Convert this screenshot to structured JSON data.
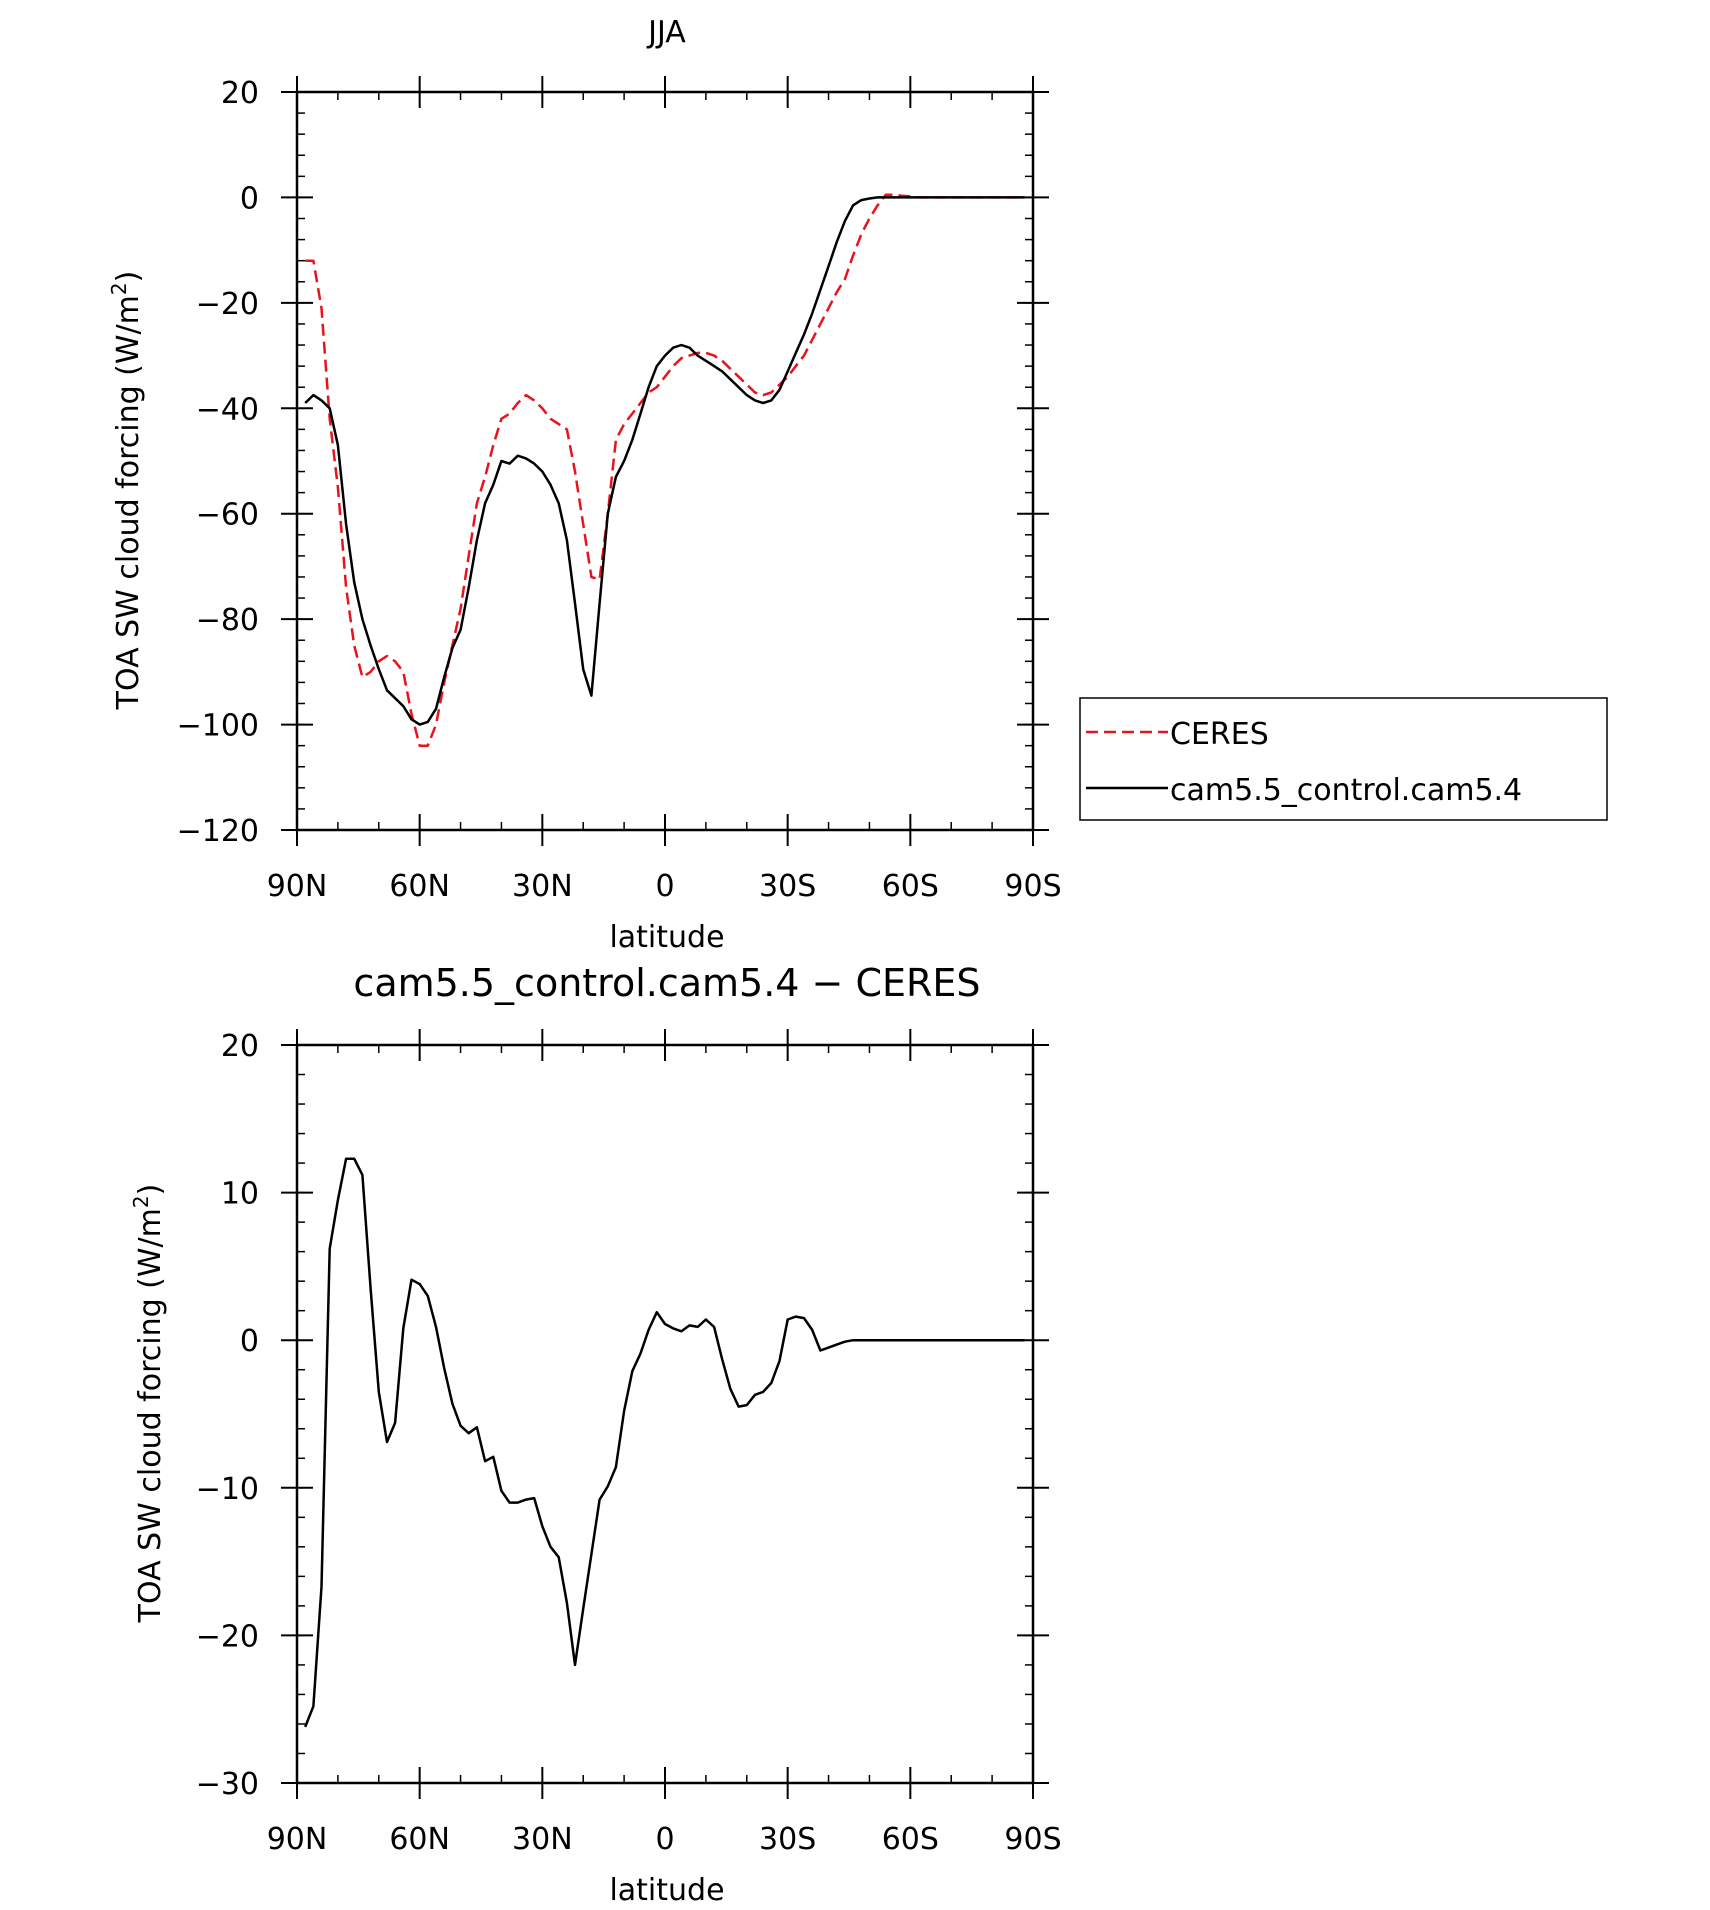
{
  "chart_data": [
    {
      "type": "line",
      "title": "JJA",
      "xlabel": "latitude",
      "ylabel": "TOA SW cloud forcing (W/m²)",
      "ylabel_parts": {
        "before": "TOA SW cloud forcing (W/m",
        "sup": "2",
        "after": ")"
      },
      "xlim": [
        90,
        -90
      ],
      "ylim": [
        -120,
        20
      ],
      "x_ticks": [
        90,
        60,
        30,
        0,
        -30,
        -60,
        -90
      ],
      "x_tick_labels": [
        "90N",
        "60N",
        "30N",
        "0",
        "30S",
        "60S",
        "90S"
      ],
      "y_ticks": [
        20,
        0,
        -20,
        -40,
        -60,
        -80,
        -100,
        -120
      ],
      "y_tick_labels": [
        "20",
        "0",
        "−20",
        "−40",
        "−60",
        "−80",
        "−100",
        "−120"
      ],
      "legend_placement": "outside-right",
      "series": [
        {
          "name": "CERES",
          "color": "#e8141c",
          "style": "dashed",
          "x": [
            88,
            86,
            84,
            82,
            80,
            78,
            76,
            74,
            72,
            70,
            68,
            66,
            64,
            62,
            60,
            58,
            56,
            54,
            52,
            50,
            48,
            46,
            44,
            42,
            40,
            38,
            36,
            34,
            32,
            30,
            28,
            26,
            24,
            22,
            20,
            18,
            16,
            14,
            12,
            10,
            8,
            6,
            4,
            2,
            0,
            -2,
            -4,
            -6,
            -8,
            -10,
            -12,
            -14,
            -16,
            -18,
            -20,
            -22,
            -24,
            -26,
            -28,
            -30,
            -32,
            -34,
            -36,
            -38,
            -40,
            -42,
            -44,
            -46,
            -48,
            -50,
            -52,
            -54,
            -56,
            -58,
            -60,
            -62,
            -64,
            -66,
            -68,
            -70,
            -72,
            -74,
            -76,
            -78,
            -80,
            -82,
            -84,
            -86,
            -88
          ],
          "y": [
            -12,
            -12,
            -21,
            -42,
            -55,
            -74,
            -85,
            -91,
            -90,
            -88,
            -87,
            -88,
            -90,
            -98,
            -104,
            -104,
            -100,
            -92,
            -85,
            -78,
            -68,
            -58,
            -53,
            -47,
            -42,
            -41,
            -39,
            -37.5,
            -38.5,
            -40,
            -42,
            -43,
            -44,
            -52,
            -62,
            -72,
            -72.5,
            -60,
            -46,
            -43,
            -41,
            -39,
            -37,
            -36,
            -34,
            -32,
            -30.5,
            -30,
            -29.5,
            -29.5,
            -30,
            -31,
            -32.5,
            -34,
            -35.5,
            -37,
            -37.5,
            -37,
            -35.5,
            -34,
            -32,
            -30,
            -27,
            -24,
            -21,
            -18,
            -15.5,
            -11,
            -7,
            -4,
            -1.5,
            0.5,
            0.5,
            0.3,
            0.2,
            0,
            0,
            0,
            0,
            0,
            0,
            0,
            0,
            0,
            0,
            0,
            0,
            0,
            0
          ]
        },
        {
          "name": "cam5.5_control.cam5.4",
          "color": "#000000",
          "style": "solid",
          "x": [
            88,
            86,
            84,
            82,
            80,
            78,
            76,
            74,
            72,
            70,
            68,
            66,
            64,
            62,
            60,
            58,
            56,
            54,
            52,
            50,
            48,
            46,
            44,
            42,
            40,
            38,
            36,
            34,
            32,
            30,
            28,
            26,
            24,
            22,
            20,
            18,
            16,
            14,
            12,
            10,
            8,
            6,
            4,
            2,
            0,
            -2,
            -4,
            -6,
            -8,
            -10,
            -12,
            -14,
            -16,
            -18,
            -20,
            -22,
            -24,
            -26,
            -28,
            -30,
            -32,
            -34,
            -36,
            -38,
            -40,
            -42,
            -44,
            -46,
            -48,
            -50,
            -52,
            -54,
            -56,
            -58,
            -60,
            -62,
            -64,
            -66,
            -68,
            -70,
            -72,
            -74,
            -76,
            -78,
            -80,
            -82,
            -84,
            -86,
            -88
          ],
          "y": [
            -39,
            -37.5,
            -38.5,
            -40,
            -47,
            -62,
            -73,
            -80,
            -85,
            -89.5,
            -93.5,
            -95,
            -96.5,
            -99,
            -100,
            -99.5,
            -97,
            -91,
            -85.5,
            -82,
            -74,
            -65,
            -58,
            -54.5,
            -50,
            -50.5,
            -49,
            -49.5,
            -50.5,
            -52,
            -54.5,
            -58,
            -65,
            -77,
            -89.5,
            -94.5,
            -77,
            -60,
            -53,
            -50,
            -46,
            -41,
            -36,
            -32,
            -30,
            -28.5,
            -28,
            -28.5,
            -30,
            -31,
            -32,
            -33,
            -34.5,
            -36,
            -37.5,
            -38.5,
            -39,
            -38.5,
            -36.5,
            -33,
            -29.5,
            -26,
            -22,
            -17.5,
            -13,
            -8.5,
            -4.5,
            -1.5,
            -0.5,
            -0.2,
            0,
            0,
            0,
            0,
            0,
            0,
            0,
            0,
            0,
            0,
            0,
            0,
            0,
            0,
            0,
            0,
            0,
            0,
            0
          ]
        }
      ]
    },
    {
      "type": "line",
      "title": "cam5.5_control.cam5.4 − CERES",
      "xlabel": "latitude",
      "ylabel": "TOA SW cloud forcing (W/m²)",
      "ylabel_parts": {
        "before": "TOA SW cloud forcing (W/m",
        "sup": "2",
        "after": ")"
      },
      "xlim": [
        90,
        -90
      ],
      "ylim": [
        -30,
        20
      ],
      "x_ticks": [
        90,
        60,
        30,
        0,
        -30,
        -60,
        -90
      ],
      "x_tick_labels": [
        "90N",
        "60N",
        "30N",
        "0",
        "30S",
        "60S",
        "90S"
      ],
      "y_ticks": [
        20,
        10,
        0,
        -10,
        -20,
        -30
      ],
      "y_tick_labels": [
        "20",
        "10",
        "0",
        "−10",
        "−20",
        "−30"
      ],
      "series": [
        {
          "color": "#000000",
          "style": "solid",
          "x": [
            88,
            86,
            84,
            82,
            80,
            78,
            76,
            74,
            72,
            70,
            68,
            66,
            64,
            62,
            60,
            58,
            56,
            54,
            52,
            50,
            48,
            46,
            44,
            42,
            40,
            38,
            36,
            34,
            32,
            30,
            28,
            26,
            24,
            22,
            20,
            18,
            16,
            14,
            12,
            10,
            8,
            6,
            4,
            2,
            0,
            -2,
            -4,
            -6,
            -8,
            -10,
            -12,
            -14,
            -16,
            -18,
            -20,
            -22,
            -24,
            -26,
            -28,
            -30,
            -32,
            -34,
            -36,
            -38,
            -40,
            -42,
            -44,
            -46,
            -48,
            -50,
            -52,
            -54,
            -56,
            -58,
            -60,
            -62,
            -64,
            -66,
            -68,
            -70,
            -72,
            -74,
            -76,
            -78,
            -80,
            -82,
            -84,
            -86,
            -88
          ],
          "y": [
            -26.2,
            -24.8,
            -16.7,
            6.2,
            9.5,
            12.3,
            12.3,
            11.2,
            3.5,
            -3.5,
            -6.9,
            -5.6,
            0.8,
            4.1,
            3.8,
            3.0,
            0.9,
            -1.9,
            -4.3,
            -5.8,
            -6.3,
            -5.9,
            -8.2,
            -7.9,
            -10.2,
            -11.0,
            -11.0,
            -10.8,
            -10.7,
            -12.6,
            -14.0,
            -14.7,
            -17.8,
            -22.0,
            -18.2,
            -14.5,
            -10.8,
            -9.9,
            -8.6,
            -4.8,
            -2.1,
            -0.9,
            0.7,
            1.9,
            1.1,
            0.8,
            0.6,
            1.0,
            0.9,
            1.4,
            0.9,
            -1.3,
            -3.3,
            -4.5,
            -4.4,
            -3.7,
            -3.5,
            -2.9,
            -1.4,
            1.4,
            1.6,
            1.5,
            0.7,
            -0.7,
            -0.5,
            -0.3,
            -0.1,
            0,
            0,
            0,
            0,
            0,
            0,
            0,
            0,
            0,
            0,
            0,
            0,
            0,
            0,
            0,
            0,
            0,
            0,
            0,
            0,
            0,
            0
          ]
        }
      ]
    }
  ]
}
